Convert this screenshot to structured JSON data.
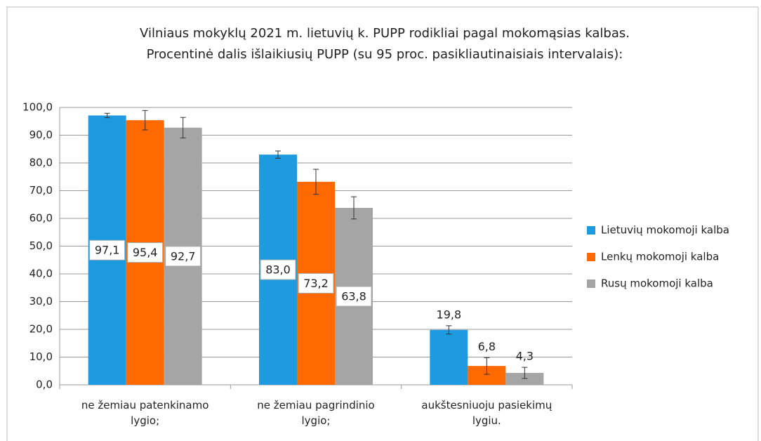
{
  "chart_data": {
    "type": "bar",
    "title": [
      "Vilniaus mokyklų 2021 m. lietuvių k. PUPP rodikliai pagal mokomąsias kalbas.",
      "Procentinė dalis išlaikiusių PUPP (su 95 proc. pasikliautinaisiais intervalais):"
    ],
    "categories": [
      "ne žemiau patenkinamo lygio;",
      "ne žemiau pagrindinio lygio;",
      "aukštesniuoju pasiekimų lygiu."
    ],
    "series": [
      {
        "name": "Lietuvių mokomoji kalba",
        "color": "#1e9be0",
        "values": [
          97.1,
          83.0,
          19.8
        ],
        "value_labels": [
          "97,1",
          "83,0",
          "19,8"
        ],
        "errors": [
          0.8,
          1.3,
          1.5
        ]
      },
      {
        "name": "Lenkų mokomoji kalba",
        "color": "#ff6a00",
        "values": [
          95.4,
          73.2,
          6.8
        ],
        "value_labels": [
          "95,4",
          "73,2",
          "6,8"
        ],
        "errors": [
          3.5,
          4.5,
          3.0
        ]
      },
      {
        "name": "Rusų mokomoji kalba",
        "color": "#a5a5a5",
        "values": [
          92.7,
          63.8,
          4.3
        ],
        "value_labels": [
          "92,7",
          "63,8",
          "4,3"
        ],
        "errors": [
          3.7,
          4.0,
          2.0
        ]
      }
    ],
    "ylim": [
      0,
      100
    ],
    "yticks": [
      {
        "value": 0,
        "label": "0,0"
      },
      {
        "value": 10,
        "label": "10,0"
      },
      {
        "value": 20,
        "label": "20,0"
      },
      {
        "value": 30,
        "label": "30,0"
      },
      {
        "value": 40,
        "label": "40,0"
      },
      {
        "value": 50,
        "label": "50,0"
      },
      {
        "value": 60,
        "label": "60,0"
      },
      {
        "value": 70,
        "label": "70,0"
      },
      {
        "value": 80,
        "label": "80,0"
      },
      {
        "value": 90,
        "label": "90,0"
      },
      {
        "value": 100,
        "label": "100,0"
      }
    ],
    "grid": true,
    "legend": "right"
  }
}
